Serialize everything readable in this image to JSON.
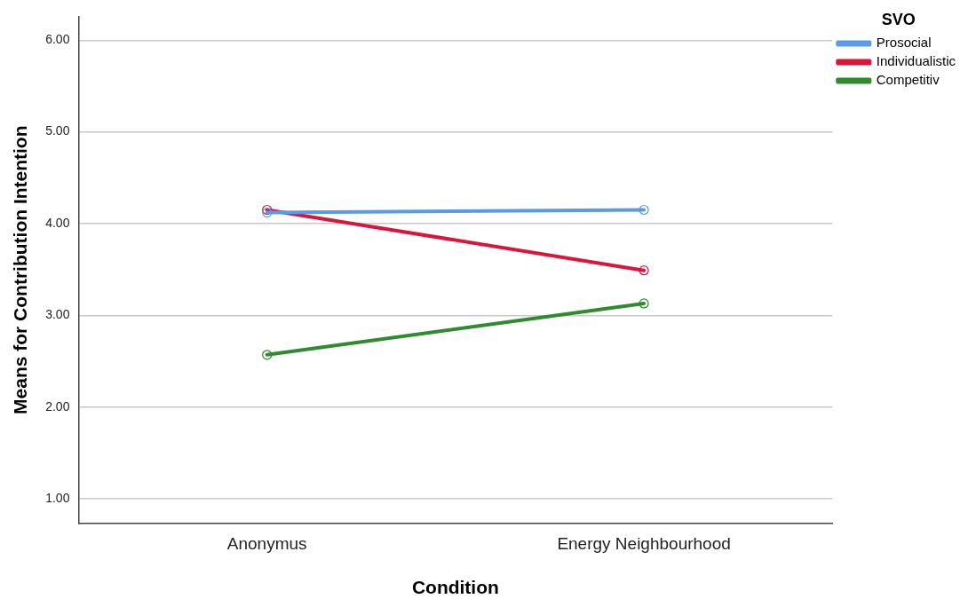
{
  "chart_data": {
    "type": "line",
    "xlabel": "Condition",
    "ylabel": "Means for Contribution Intention",
    "legend_title": "SVO",
    "categories": [
      "Anonymus",
      "Energy Neighbourhood"
    ],
    "series": [
      {
        "name": "Prosocial",
        "color": "#5b9ae8",
        "values": [
          4.12,
          4.15
        ]
      },
      {
        "name": "Individualistic",
        "color": "#dc143c",
        "values": [
          4.15,
          3.49
        ]
      },
      {
        "name": "Competitiv",
        "color": "#2e8b2e",
        "values": [
          2.57,
          3.13
        ]
      }
    ],
    "ylim": [
      0.73,
      6.26
    ],
    "yticks": [
      {
        "value": 1,
        "label": "1.00"
      },
      {
        "value": 2,
        "label": "2.00"
      },
      {
        "value": 3,
        "label": "3.00"
      },
      {
        "value": 4,
        "label": "4.00"
      },
      {
        "value": 5,
        "label": "5.00"
      },
      {
        "value": 6,
        "label": "6.00"
      }
    ],
    "grid": "y",
    "legend": "top right",
    "marker": "circle",
    "line_style": "solid"
  }
}
